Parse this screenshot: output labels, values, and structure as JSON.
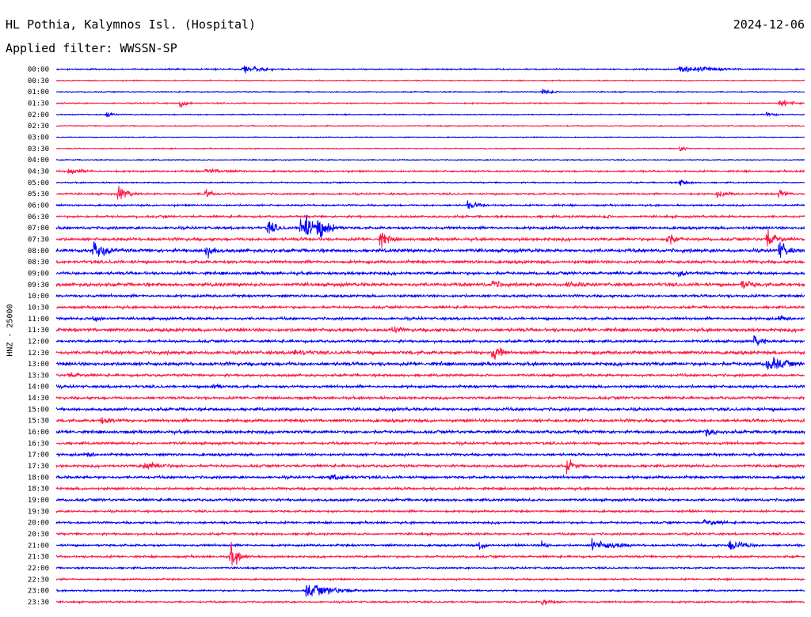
{
  "header": {
    "station": "HL Pothia, Kalymnos Isl. (Hospital)",
    "filter": "Applied filter: WWSSN-SP",
    "date": "2024-12-06"
  },
  "channel_label": "HNZ - 25000",
  "colors": {
    "even_rows": "#0000ff",
    "odd_rows": "#ff1744",
    "text": "#000000"
  },
  "chart_data": {
    "type": "helicorder",
    "title": "HL Pothia, Kalymnos Isl. (Hospital)",
    "ylabel": "HNZ - 25000",
    "row_duration_minutes": 30,
    "row_labels": [
      "00:00",
      "00:30",
      "01:00",
      "01:30",
      "02:00",
      "02:30",
      "03:00",
      "03:30",
      "04:00",
      "04:30",
      "05:00",
      "05:30",
      "06:00",
      "06:30",
      "07:00",
      "07:30",
      "08:00",
      "08:30",
      "09:00",
      "09:30",
      "10:00",
      "10:30",
      "11:00",
      "11:30",
      "12:00",
      "12:30",
      "13:00",
      "13:30",
      "14:00",
      "14:30",
      "15:00",
      "15:30",
      "16:00",
      "16:30",
      "17:00",
      "17:30",
      "18:00",
      "18:30",
      "19:00",
      "19:30",
      "20:00",
      "20:30",
      "21:00",
      "21:30",
      "22:00",
      "22:30",
      "23:00",
      "23:30"
    ],
    "background_noise": [
      0.15,
      0.12,
      0.12,
      0.15,
      0.12,
      0.12,
      0.1,
      0.12,
      0.12,
      0.2,
      0.15,
      0.2,
      0.2,
      0.25,
      0.3,
      0.35,
      0.4,
      0.35,
      0.35,
      0.4,
      0.3,
      0.3,
      0.3,
      0.4,
      0.3,
      0.4,
      0.4,
      0.3,
      0.3,
      0.3,
      0.35,
      0.35,
      0.35,
      0.3,
      0.3,
      0.3,
      0.3,
      0.3,
      0.3,
      0.25,
      0.25,
      0.25,
      0.25,
      0.25,
      0.2,
      0.2,
      0.2,
      0.2
    ],
    "events": [
      {
        "row": 0,
        "minute": 7.5,
        "amplitude": 1.2,
        "duration_minutes": 0.8
      },
      {
        "row": 0,
        "minute": 25,
        "amplitude": 1.1,
        "duration_minutes": 1.5
      },
      {
        "row": 2,
        "minute": 19.5,
        "amplitude": 1.0,
        "duration_minutes": 0.4
      },
      {
        "row": 3,
        "minute": 5,
        "amplitude": 1.2,
        "duration_minutes": 0.3
      },
      {
        "row": 3,
        "minute": 29,
        "amplitude": 1.0,
        "duration_minutes": 0.6
      },
      {
        "row": 4,
        "minute": 2,
        "amplitude": 1.0,
        "duration_minutes": 0.3
      },
      {
        "row": 4,
        "minute": 28.5,
        "amplitude": 0.8,
        "duration_minutes": 0.3
      },
      {
        "row": 7,
        "minute": 25,
        "amplitude": 1.0,
        "duration_minutes": 0.3
      },
      {
        "row": 9,
        "minute": 0.5,
        "amplitude": 0.8,
        "duration_minutes": 0.8
      },
      {
        "row": 9,
        "minute": 6,
        "amplitude": 0.7,
        "duration_minutes": 1.2
      },
      {
        "row": 10,
        "minute": 25,
        "amplitude": 1.0,
        "duration_minutes": 0.4
      },
      {
        "row": 11,
        "minute": 2.5,
        "amplitude": 2.0,
        "duration_minutes": 0.4
      },
      {
        "row": 11,
        "minute": 6,
        "amplitude": 1.5,
        "duration_minutes": 0.3
      },
      {
        "row": 11,
        "minute": 26.5,
        "amplitude": 1.0,
        "duration_minutes": 0.6
      },
      {
        "row": 11,
        "minute": 29,
        "amplitude": 1.5,
        "duration_minutes": 0.3
      },
      {
        "row": 12,
        "minute": 16.5,
        "amplitude": 1.0,
        "duration_minutes": 0.6
      },
      {
        "row": 13,
        "minute": 22,
        "amplitude": 0.8,
        "duration_minutes": 0.3
      },
      {
        "row": 14,
        "minute": 8.5,
        "amplitude": 2.0,
        "duration_minutes": 0.4
      },
      {
        "row": 14,
        "minute": 9.8,
        "amplitude": 4.5,
        "duration_minutes": 0.5
      },
      {
        "row": 14,
        "minute": 10.5,
        "amplitude": 3.5,
        "duration_minutes": 0.5
      },
      {
        "row": 15,
        "minute": 13,
        "amplitude": 2.0,
        "duration_minutes": 0.5
      },
      {
        "row": 15,
        "minute": 24.5,
        "amplitude": 2.0,
        "duration_minutes": 0.4
      },
      {
        "row": 15,
        "minute": 28.5,
        "amplitude": 3.0,
        "duration_minutes": 0.4
      },
      {
        "row": 16,
        "minute": 1.5,
        "amplitude": 2.5,
        "duration_minutes": 0.6
      },
      {
        "row": 16,
        "minute": 6,
        "amplitude": 2.0,
        "duration_minutes": 0.4
      },
      {
        "row": 16,
        "minute": 29,
        "amplitude": 2.5,
        "duration_minutes": 0.4
      },
      {
        "row": 18,
        "minute": 25,
        "amplitude": 1.0,
        "duration_minutes": 0.4
      },
      {
        "row": 19,
        "minute": 17.5,
        "amplitude": 1.5,
        "duration_minutes": 0.4
      },
      {
        "row": 19,
        "minute": 20.5,
        "amplitude": 1.0,
        "duration_minutes": 1.0
      },
      {
        "row": 19,
        "minute": 27.5,
        "amplitude": 1.5,
        "duration_minutes": 0.6
      },
      {
        "row": 22,
        "minute": 1.5,
        "amplitude": 1.0,
        "duration_minutes": 0.6
      },
      {
        "row": 22,
        "minute": 29,
        "amplitude": 1.0,
        "duration_minutes": 0.5
      },
      {
        "row": 23,
        "minute": 13.5,
        "amplitude": 1.2,
        "duration_minutes": 0.5
      },
      {
        "row": 24,
        "minute": 28,
        "amplitude": 1.5,
        "duration_minutes": 0.4
      },
      {
        "row": 25,
        "minute": 9.5,
        "amplitude": 1.0,
        "duration_minutes": 1.0
      },
      {
        "row": 25,
        "minute": 17.5,
        "amplitude": 2.5,
        "duration_minutes": 0.4
      },
      {
        "row": 26,
        "minute": 28.5,
        "amplitude": 2.5,
        "duration_minutes": 0.8
      },
      {
        "row": 27,
        "minute": 0.5,
        "amplitude": 1.0,
        "duration_minutes": 0.6
      },
      {
        "row": 28,
        "minute": 6.3,
        "amplitude": 1.5,
        "duration_minutes": 0.3
      },
      {
        "row": 31,
        "minute": 1.8,
        "amplitude": 1.0,
        "duration_minutes": 1.0
      },
      {
        "row": 32,
        "minute": 26,
        "amplitude": 1.5,
        "duration_minutes": 0.4
      },
      {
        "row": 34,
        "minute": 1.3,
        "amplitude": 1.0,
        "duration_minutes": 0.3
      },
      {
        "row": 35,
        "minute": 3.5,
        "amplitude": 1.2,
        "duration_minutes": 1.2
      },
      {
        "row": 35,
        "minute": 20.5,
        "amplitude": 2.0,
        "duration_minutes": 0.3
      },
      {
        "row": 36,
        "minute": 11,
        "amplitude": 0.8,
        "duration_minutes": 1.5
      },
      {
        "row": 40,
        "minute": 26,
        "amplitude": 1.0,
        "duration_minutes": 0.8
      },
      {
        "row": 42,
        "minute": 17,
        "amplitude": 1.5,
        "duration_minutes": 0.3
      },
      {
        "row": 42,
        "minute": 19.5,
        "amplitude": 1.2,
        "duration_minutes": 0.3
      },
      {
        "row": 42,
        "minute": 21.5,
        "amplitude": 1.5,
        "duration_minutes": 0.6
      },
      {
        "row": 42,
        "minute": 22,
        "amplitude": 1.2,
        "duration_minutes": 0.8
      },
      {
        "row": 42,
        "minute": 27,
        "amplitude": 1.5,
        "duration_minutes": 0.8
      },
      {
        "row": 43,
        "minute": 7,
        "amplitude": 3.0,
        "duration_minutes": 0.4
      },
      {
        "row": 46,
        "minute": 10,
        "amplitude": 2.0,
        "duration_minutes": 1.2
      },
      {
        "row": 47,
        "minute": 19.5,
        "amplitude": 1.0,
        "duration_minutes": 0.5
      }
    ]
  }
}
